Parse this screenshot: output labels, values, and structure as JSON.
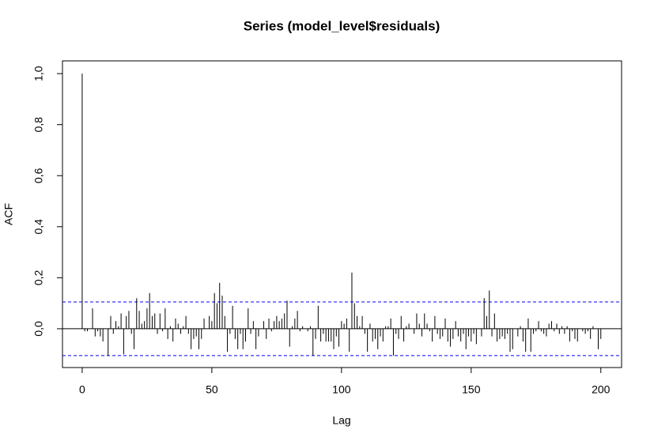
{
  "chart_data": {
    "type": "bar",
    "title": "Series  (model_level$residuals)",
    "x_label": "Lag",
    "y_label": "ACF",
    "color": "#000000",
    "bounds": [
      0.105,
      -0.105
    ],
    "bounds_color": "#0000ff",
    "xlim": [
      -7.6,
      208
    ],
    "ylim": [
      -0.152,
      1.05
    ],
    "xticks": [
      0,
      50,
      100,
      150,
      200
    ],
    "yticks": [
      {
        "value": 0,
        "label": "0,0"
      },
      {
        "value": 0.2,
        "label": "0,2"
      },
      {
        "value": 0.4,
        "label": "0,4"
      },
      {
        "value": 0.6,
        "label": "0,6"
      },
      {
        "value": 0.8,
        "label": "0,8"
      },
      {
        "value": 1,
        "label": "1,0"
      }
    ],
    "x": [
      0,
      1,
      2,
      3,
      4,
      5,
      6,
      7,
      8,
      9,
      10,
      11,
      12,
      13,
      14,
      15,
      16,
      17,
      18,
      19,
      20,
      21,
      22,
      23,
      24,
      25,
      26,
      27,
      28,
      29,
      30,
      31,
      32,
      33,
      34,
      35,
      36,
      37,
      38,
      39,
      40,
      41,
      42,
      43,
      44,
      45,
      46,
      47,
      48,
      49,
      50,
      51,
      52,
      53,
      54,
      55,
      56,
      57,
      58,
      59,
      60,
      61,
      62,
      63,
      64,
      65,
      66,
      67,
      68,
      69,
      70,
      71,
      72,
      73,
      74,
      75,
      76,
      77,
      78,
      79,
      80,
      81,
      82,
      83,
      84,
      85,
      86,
      87,
      88,
      89,
      90,
      91,
      92,
      93,
      94,
      95,
      96,
      97,
      98,
      99,
      100,
      101,
      102,
      103,
      104,
      105,
      106,
      107,
      108,
      109,
      110,
      111,
      112,
      113,
      114,
      115,
      116,
      117,
      118,
      119,
      120,
      121,
      122,
      123,
      124,
      125,
      126,
      127,
      128,
      129,
      130,
      131,
      132,
      133,
      134,
      135,
      136,
      137,
      138,
      139,
      140,
      141,
      142,
      143,
      144,
      145,
      146,
      147,
      148,
      149,
      150,
      151,
      152,
      153,
      154,
      155,
      156,
      157,
      158,
      159,
      160,
      161,
      162,
      163,
      164,
      165,
      166,
      167,
      168,
      169,
      170,
      171,
      172,
      173,
      174,
      175,
      176,
      177,
      178,
      179,
      180,
      181,
      182,
      183,
      184,
      185,
      186,
      187,
      188,
      189,
      190,
      191,
      192,
      193,
      194,
      195,
      196,
      197,
      198,
      199,
      200
    ],
    "values": [
      1.0,
      -0.01,
      -0.01,
      0.0,
      0.08,
      -0.03,
      -0.01,
      -0.03,
      -0.05,
      0.0,
      -0.105,
      0.05,
      -0.02,
      0.03,
      0.01,
      0.06,
      -0.1,
      0.05,
      0.07,
      -0.02,
      -0.08,
      0.12,
      0.07,
      0.02,
      0.03,
      0.08,
      0.14,
      0.05,
      0.06,
      -0.02,
      0.06,
      -0.01,
      0.08,
      -0.04,
      0.01,
      -0.05,
      0.04,
      0.02,
      -0.02,
      0.01,
      0.05,
      -0.02,
      -0.08,
      -0.04,
      -0.03,
      -0.08,
      -0.04,
      0.04,
      0.0,
      0.05,
      0.03,
      0.14,
      0.1,
      0.18,
      0.13,
      0.05,
      -0.09,
      -0.02,
      0.09,
      -0.04,
      -0.08,
      -0.02,
      -0.08,
      -0.05,
      0.08,
      -0.02,
      0.03,
      -0.08,
      -0.03,
      0.0,
      0.03,
      -0.04,
      0.04,
      -0.01,
      0.03,
      0.05,
      0.03,
      0.04,
      0.06,
      0.11,
      -0.07,
      0.01,
      0.04,
      0.07,
      -0.01,
      0.01,
      0.0,
      -0.01,
      0.01,
      -0.105,
      -0.04,
      0.09,
      -0.05,
      -0.02,
      -0.05,
      -0.05,
      -0.05,
      -0.08,
      -0.03,
      -0.07,
      0.03,
      0.02,
      0.04,
      -0.09,
      0.22,
      0.1,
      0.05,
      0.01,
      0.05,
      -0.02,
      -0.09,
      0.02,
      -0.05,
      -0.04,
      -0.08,
      -0.03,
      -0.05,
      0.01,
      0.01,
      0.04,
      -0.105,
      -0.02,
      -0.04,
      0.05,
      -0.05,
      0.01,
      0.02,
      0.0,
      -0.02,
      0.06,
      0.02,
      -0.03,
      0.06,
      0.02,
      -0.01,
      -0.05,
      0.05,
      -0.02,
      -0.04,
      -0.03,
      0.04,
      -0.05,
      -0.07,
      -0.04,
      0.03,
      -0.03,
      -0.05,
      -0.02,
      -0.08,
      -0.03,
      -0.05,
      -0.02,
      -0.06,
      0.0,
      -0.03,
      0.12,
      0.05,
      0.15,
      -0.03,
      0.06,
      -0.05,
      -0.04,
      -0.03,
      -0.04,
      -0.02,
      -0.09,
      -0.08,
      0.0,
      -0.03,
      0.01,
      -0.05,
      -0.09,
      0.04,
      -0.09,
      -0.02,
      -0.01,
      0.03,
      -0.01,
      -0.02,
      -0.03,
      0.02,
      0.03,
      -0.01,
      0.02,
      -0.02,
      0.01,
      -0.02,
      0.01,
      -0.05,
      -0.01,
      -0.04,
      -0.05,
      0.0,
      -0.01,
      -0.02,
      -0.01,
      -0.04,
      0.01,
      0.0,
      -0.08,
      -0.04
    ]
  }
}
